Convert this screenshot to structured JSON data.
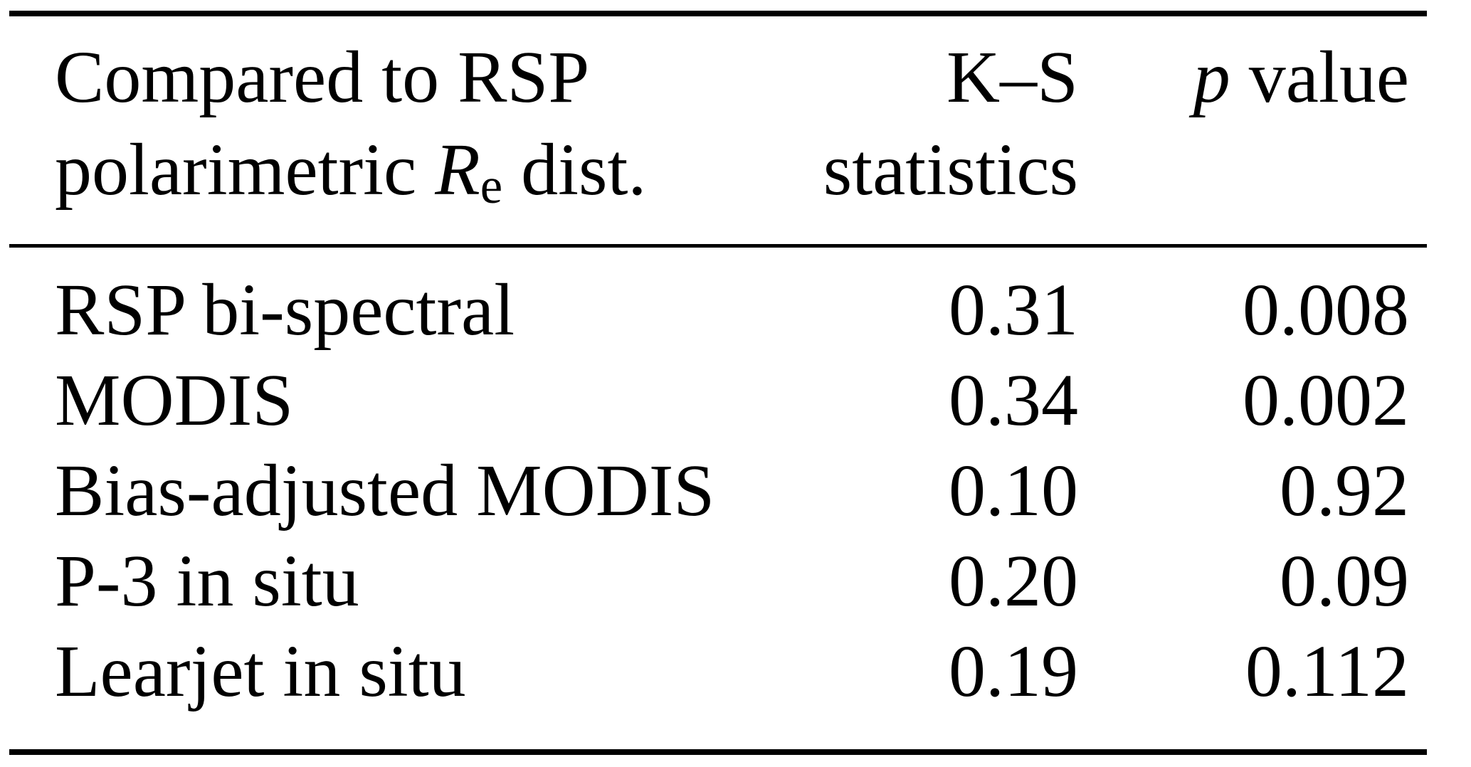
{
  "table": {
    "header": {
      "col1_line1": "Compared to RSP",
      "col1_line2_pre": "polarimetric",
      "col1_line2_var": "R",
      "col1_line2_sub": "e",
      "col1_line2_post": "dist.",
      "col2_line1": "K–S",
      "col2_line2": "statistics",
      "col3_var": "p",
      "col3_post": "value"
    },
    "rows": [
      {
        "label": "RSP bi-spectral",
        "ks": "0.31",
        "p": "0.008"
      },
      {
        "label": "MODIS",
        "ks": "0.34",
        "p": "0.002"
      },
      {
        "label": "Bias-adjusted MODIS",
        "ks": "0.10",
        "p": "0.92"
      },
      {
        "label": "P-3 in situ",
        "ks": "0.20",
        "p": "0.09"
      },
      {
        "label": "Learjet in situ",
        "ks": "0.19",
        "p": "0.112"
      }
    ],
    "colors": {
      "text": "#000000",
      "background": "#ffffff",
      "rule": "#000000"
    }
  }
}
